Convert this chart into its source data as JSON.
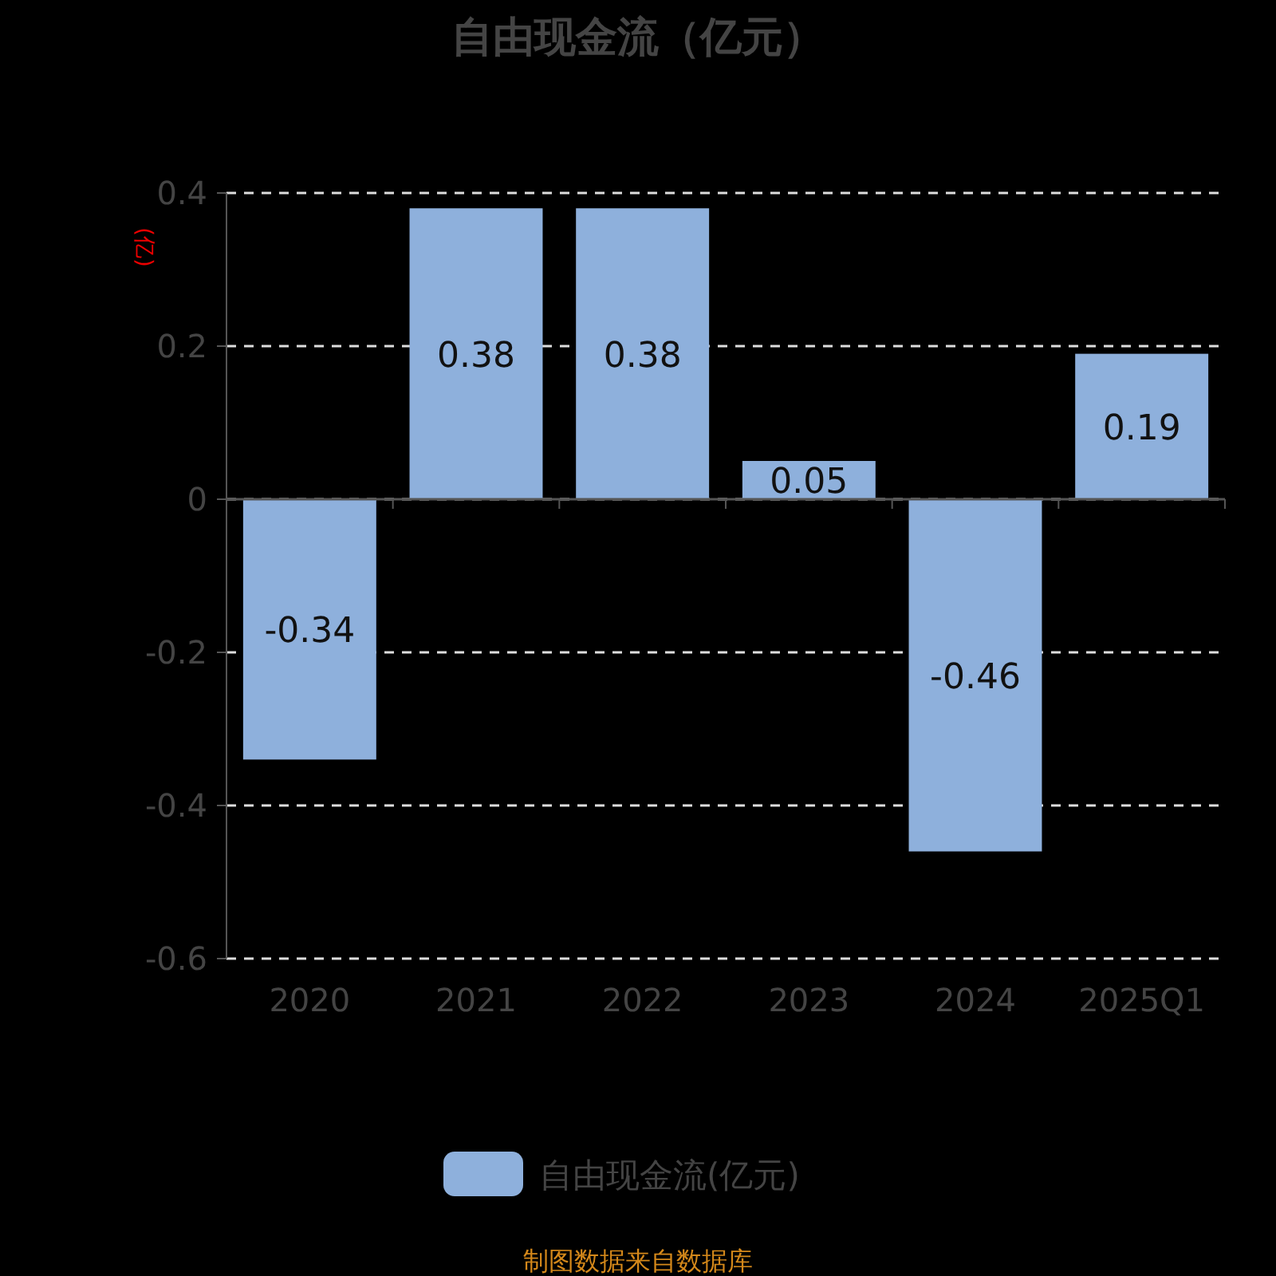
{
  "chart_data": {
    "type": "bar",
    "title": "自由现金流（亿元）",
    "ylabel": "(亿)",
    "categories": [
      "2020",
      "2021",
      "2022",
      "2023",
      "2024",
      "2025Q1"
    ],
    "series": [
      {
        "name": "自由现金流(亿元)",
        "color": "#8eb0dc",
        "values": [
          -0.34,
          0.38,
          0.38,
          0.05,
          -0.46,
          0.19
        ]
      }
    ],
    "ylim": [
      -0.6,
      0.4
    ],
    "yticks": [
      -0.6,
      -0.4,
      -0.2,
      0,
      0.2,
      0.4
    ],
    "grid": "y",
    "data_labels": true,
    "legend": "bottom",
    "annotations": [
      "制图数据来自数据库"
    ]
  }
}
